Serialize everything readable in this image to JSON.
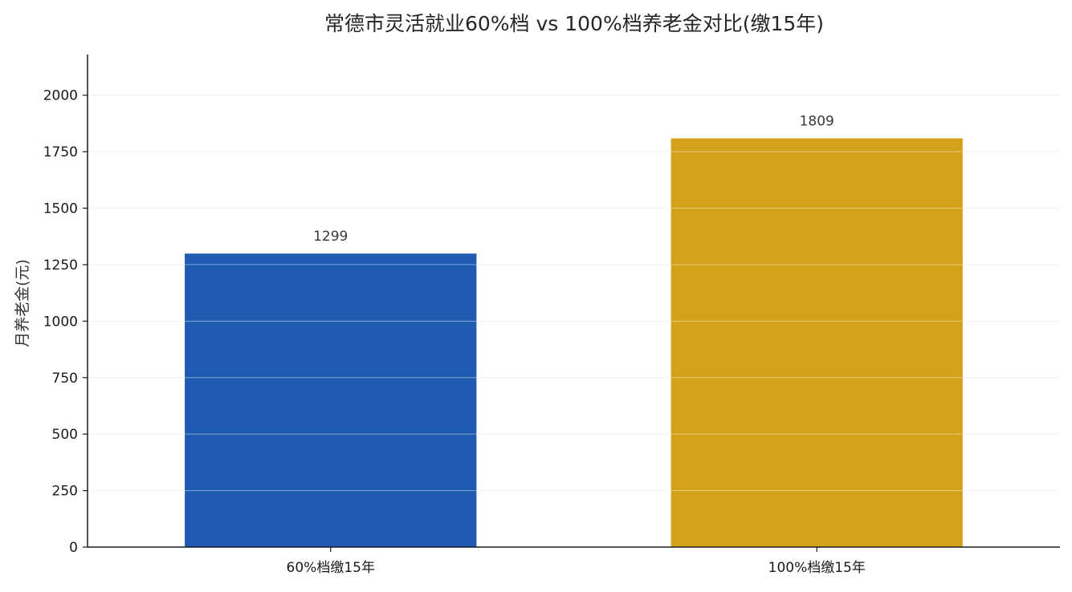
{
  "chart_data": {
    "type": "bar",
    "title": "常德市灵活就业60%档 vs 100%档养老金对比(缴15年)",
    "xlabel": "",
    "ylabel": "月养老金(元)",
    "categories": [
      "60%档缴15年",
      "100%档缴15年"
    ],
    "values": [
      1299,
      1809
    ],
    "data_labels": [
      "1299",
      "1809"
    ],
    "bar_colors": [
      "#1f5bb1",
      "#d4a11b"
    ],
    "ylim": [
      0,
      2180
    ],
    "yticks": [
      0,
      250,
      500,
      750,
      1000,
      1250,
      1500,
      1750,
      2000
    ],
    "ytick_labels": [
      "0",
      "250",
      "500",
      "750",
      "1000",
      "1250",
      "1500",
      "1750",
      "2000"
    ],
    "grid": true,
    "legend": "none"
  }
}
